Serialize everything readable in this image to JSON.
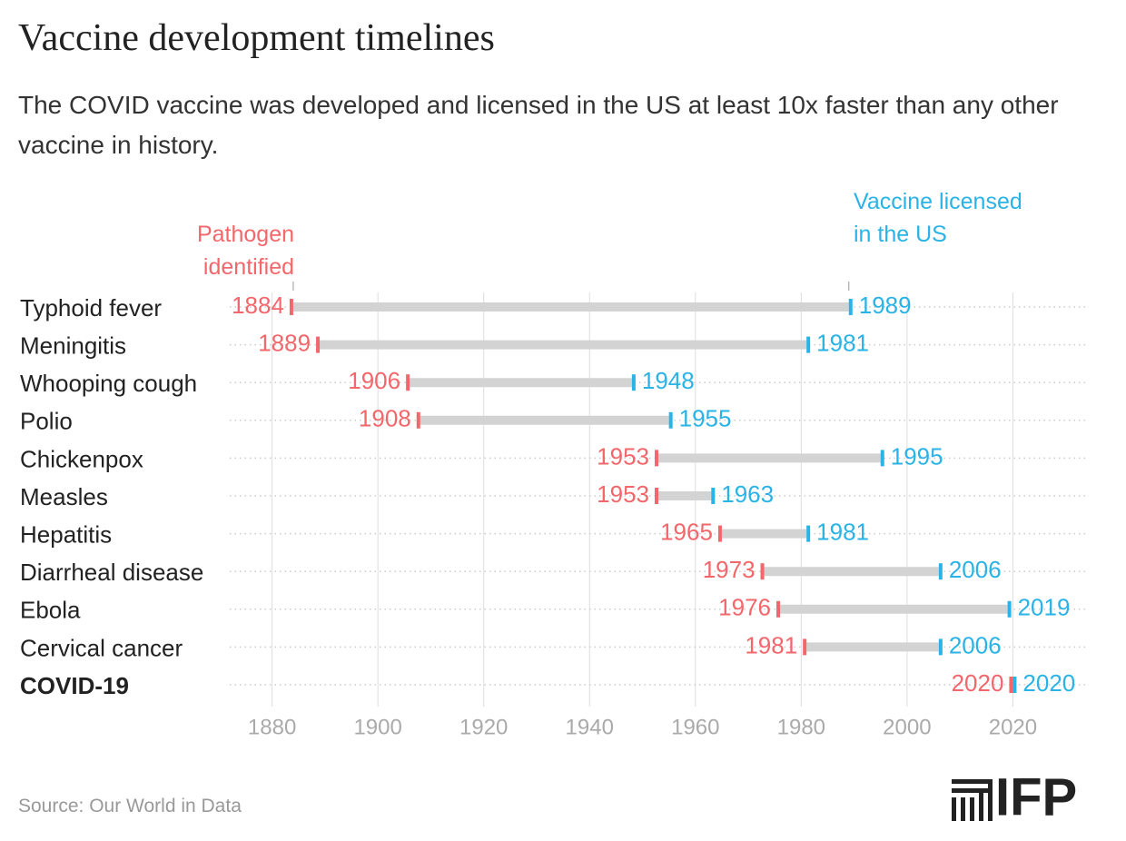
{
  "chart_data": {
    "type": "dumbbell",
    "title": "Vaccine development timelines",
    "subtitle": "The COVID vaccine was developed and licensed in the US at least 10x faster than any other vaccine in history.",
    "categories": [
      "Typhoid fever",
      "Meningitis",
      "Whooping cough",
      "Polio",
      "Chickenpox",
      "Measles",
      "Hepatitis",
      "Diarrheal disease",
      "Ebola",
      "Cervical cancer",
      "COVID-19"
    ],
    "series": [
      {
        "name": "Pathogen identified",
        "color": "#f2676b",
        "values": [
          1884,
          1889,
          1906,
          1908,
          1953,
          1953,
          1965,
          1973,
          1976,
          1981,
          2020
        ]
      },
      {
        "name": "Vaccine licensed in the US",
        "color": "#2ab3e6",
        "values": [
          1989,
          1981,
          1948,
          1955,
          1995,
          1963,
          1981,
          2006,
          2019,
          2006,
          2020
        ]
      }
    ],
    "xlim": [
      1872,
      2034
    ],
    "xticks": [
      1880,
      1900,
      1920,
      1940,
      1960,
      1980,
      2000,
      2020
    ],
    "grid": true,
    "source": "Source: Our World in Data"
  },
  "brand": "IFP"
}
